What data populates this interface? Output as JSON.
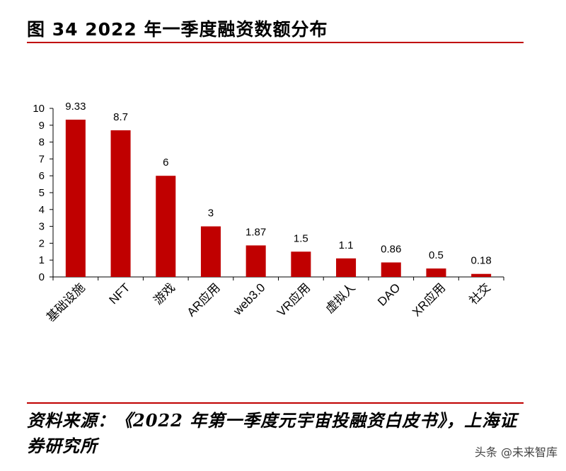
{
  "title": "图 34 2022 年一季度融资数额分布",
  "source": "资料来源：《2022 年第一季度元宇宙投融资白皮书》，上海证券研究所",
  "watermark": "头条 @未来智库",
  "colors": {
    "bar": "#c00000",
    "rule": "#c00000"
  },
  "chart_data": {
    "type": "bar",
    "categories": [
      "基础设施",
      "NFT",
      "游戏",
      "AR应用",
      "web3.0",
      "VR应用",
      "虚拟人",
      "DAO",
      "XR应用",
      "社交"
    ],
    "values": [
      9.33,
      8.7,
      6,
      3,
      1.87,
      1.5,
      1.1,
      0.86,
      0.5,
      0.18
    ],
    "value_labels": [
      "9.33",
      "8.7",
      "6",
      "3",
      "1.87",
      "1.5",
      "1.1",
      "0.86",
      "0.5",
      "0.18"
    ],
    "yticks": [
      "0",
      "1",
      "2",
      "3",
      "4",
      "5",
      "6",
      "7",
      "8",
      "9",
      "10"
    ],
    "ylim": [
      0,
      10
    ],
    "grid": false,
    "legend": "none"
  }
}
